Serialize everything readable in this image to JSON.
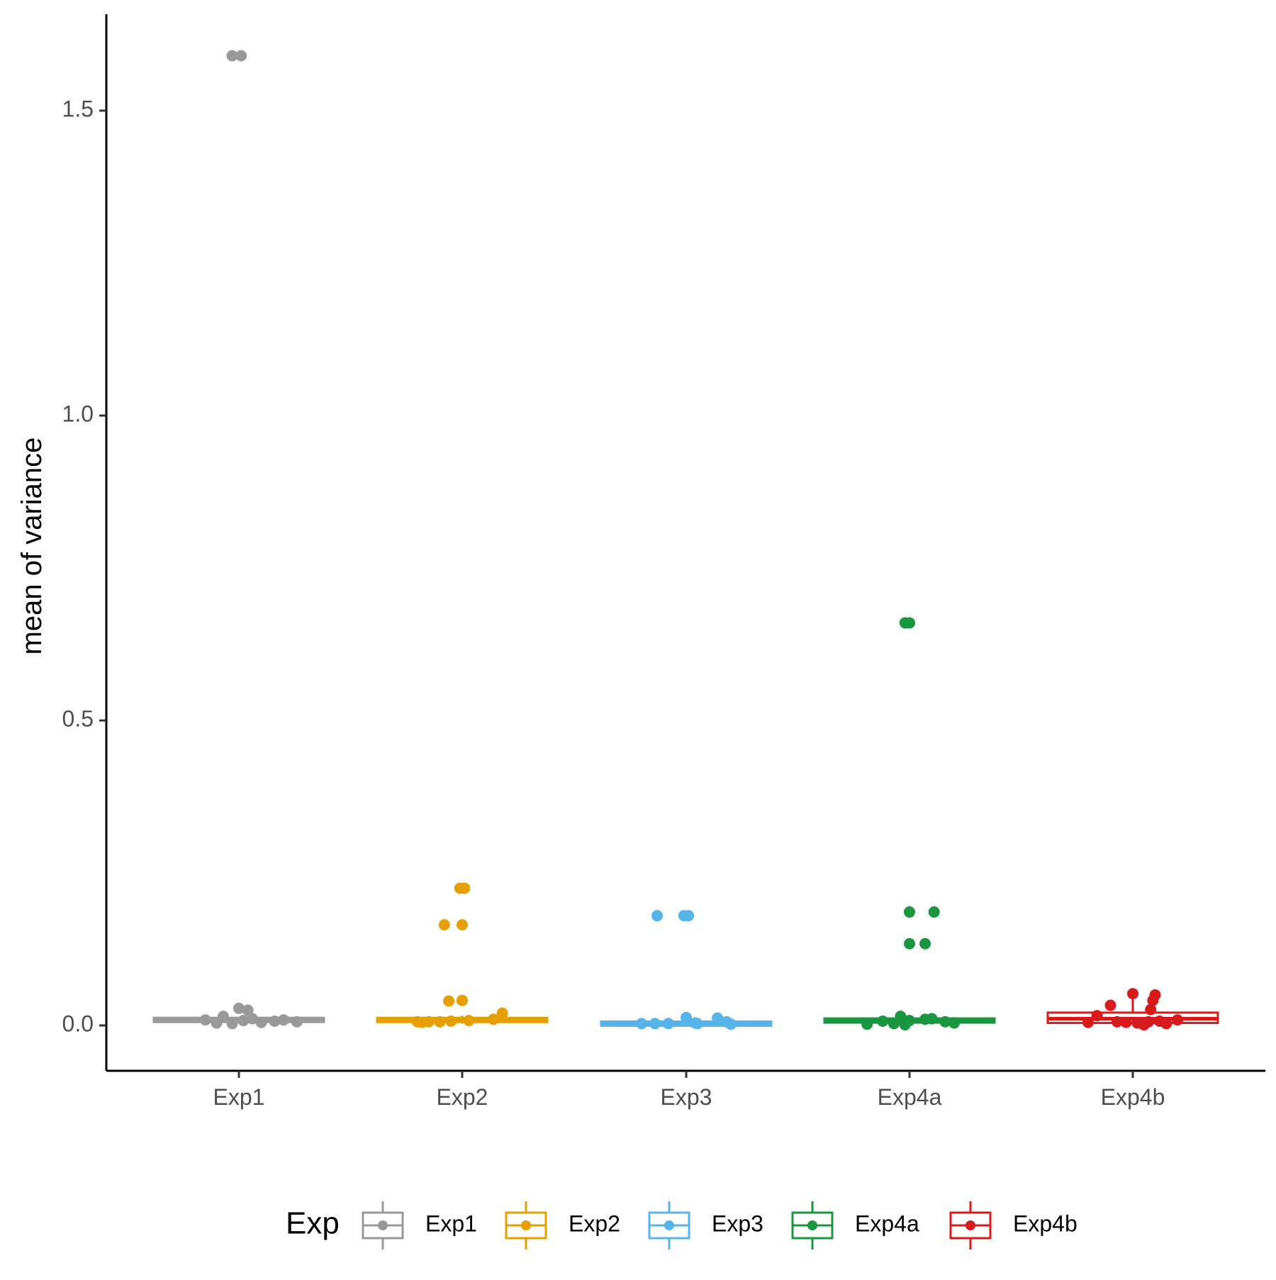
{
  "chart_data": {
    "type": "box",
    "title": "",
    "xlabel": "",
    "ylabel": "mean of variance",
    "ylim": [
      -0.075,
      1.66
    ],
    "yticks": [
      0.0,
      0.5,
      1.0,
      1.5
    ],
    "ytick_labels": [
      "0.0",
      "0.5",
      "1.0",
      "1.5"
    ],
    "categories": [
      "Exp1",
      "Exp2",
      "Exp3",
      "Exp4a",
      "Exp4b"
    ],
    "grid": false,
    "legend": {
      "title": "Exp",
      "position": "bottom"
    },
    "series": [
      {
        "name": "Exp1",
        "color": "#999999",
        "box": {
          "q1": 0.007,
          "median": 0.009,
          "q3": 0.011,
          "whisker_low": 0.006,
          "whisker_high": 0.012
        },
        "points": [
          [
            -0.15,
            0.009
          ],
          [
            -0.07,
            0.015
          ],
          [
            -0.03,
            0.003
          ],
          [
            0.0,
            0.028
          ],
          [
            0.04,
            0.025
          ],
          [
            0.06,
            0.011
          ],
          [
            0.1,
            0.005
          ],
          [
            0.16,
            0.007
          ],
          [
            0.2,
            0.009
          ],
          [
            0.26,
            0.006
          ],
          [
            -0.1,
            0.004
          ],
          [
            0.02,
            0.008
          ],
          [
            -0.03,
            1.59
          ],
          [
            0.01,
            1.59
          ]
        ]
      },
      {
        "name": "Exp2",
        "color": "#E69F00",
        "box": {
          "q1": 0.006,
          "median": 0.009,
          "q3": 0.012,
          "whisker_low": 0.003,
          "whisker_high": 0.016
        },
        "points": [
          [
            -0.2,
            0.006
          ],
          [
            -0.15,
            0.006
          ],
          [
            -0.1,
            0.006
          ],
          [
            -0.05,
            0.007
          ],
          [
            0.03,
            0.008
          ],
          [
            0.14,
            0.01
          ],
          [
            0.18,
            0.02
          ],
          [
            -0.06,
            0.04
          ],
          [
            0.0,
            0.041
          ],
          [
            -0.08,
            0.165
          ],
          [
            0.0,
            0.165
          ],
          [
            -0.01,
            0.225
          ],
          [
            0.01,
            0.225
          ],
          [
            -0.18,
            0.005
          ]
        ]
      },
      {
        "name": "Exp3",
        "color": "#56B4E9",
        "box": {
          "q1": 0.002,
          "median": 0.003,
          "q3": 0.004,
          "whisker_low": 0.001,
          "whisker_high": 0.005
        },
        "points": [
          [
            -0.2,
            0.003
          ],
          [
            -0.14,
            0.003
          ],
          [
            -0.08,
            0.003
          ],
          [
            0.0,
            0.013
          ],
          [
            0.05,
            0.003
          ],
          [
            0.14,
            0.012
          ],
          [
            0.18,
            0.006
          ],
          [
            0.2,
            0.002
          ],
          [
            -0.13,
            0.18
          ],
          [
            -0.01,
            0.18
          ],
          [
            0.01,
            0.18
          ],
          [
            0.04,
            0.004
          ]
        ]
      },
      {
        "name": "Exp4a",
        "color": "#1B9640",
        "box": {
          "q1": 0.006,
          "median": 0.008,
          "q3": 0.01,
          "whisker_low": 0.003,
          "whisker_high": 0.013
        },
        "points": [
          [
            -0.19,
            0.002
          ],
          [
            -0.12,
            0.007
          ],
          [
            -0.07,
            0.003
          ],
          [
            -0.04,
            0.015
          ],
          [
            -0.02,
            0.001
          ],
          [
            0.0,
            0.008
          ],
          [
            0.07,
            0.01
          ],
          [
            0.1,
            0.011
          ],
          [
            0.16,
            0.006
          ],
          [
            0.2,
            0.004
          ],
          [
            -0.02,
            0.66
          ],
          [
            0.0,
            0.66
          ],
          [
            0.0,
            0.186
          ],
          [
            0.11,
            0.186
          ],
          [
            0.0,
            0.134
          ],
          [
            0.07,
            0.134
          ]
        ]
      },
      {
        "name": "Exp4b",
        "color": "#D71A1C",
        "box": {
          "q1": 0.004,
          "median": 0.011,
          "q3": 0.021,
          "whisker_low": 0.001,
          "whisker_high": 0.052
        },
        "points": [
          [
            -0.2,
            0.005
          ],
          [
            -0.16,
            0.016
          ],
          [
            -0.1,
            0.033
          ],
          [
            -0.07,
            0.006
          ],
          [
            -0.03,
            0.005
          ],
          [
            0.0,
            0.052
          ],
          [
            0.02,
            0.004
          ],
          [
            0.05,
            0.001
          ],
          [
            0.07,
            0.006
          ],
          [
            0.08,
            0.026
          ],
          [
            0.09,
            0.041
          ],
          [
            0.1,
            0.05
          ],
          [
            0.12,
            0.007
          ],
          [
            0.2,
            0.009
          ],
          [
            0.15,
            0.003
          ]
        ]
      }
    ]
  }
}
